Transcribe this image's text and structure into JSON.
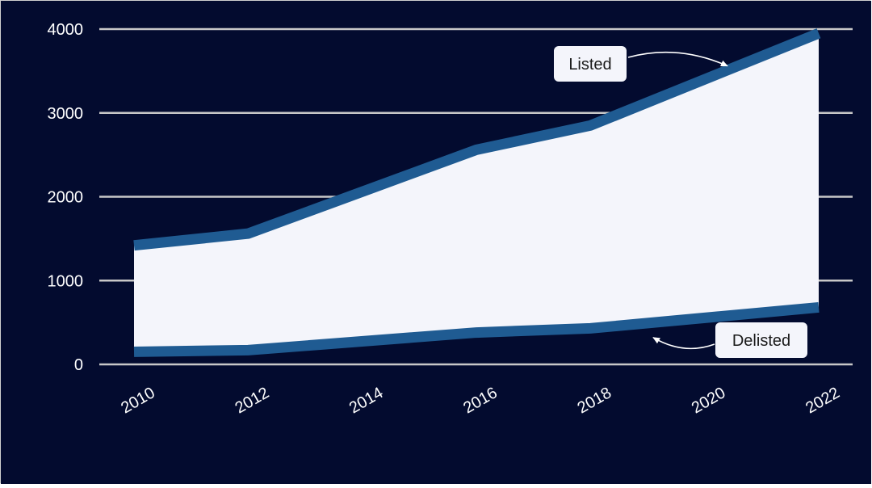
{
  "colors": {
    "background": "#030b2f",
    "grid": "#c8c8c8",
    "band_fill": "#f4f5fb",
    "series_line": "#1f5b92",
    "text": "#ffffff",
    "callout_bg": "#f4f5fb",
    "callout_text": "#1a1a1a"
  },
  "chart_data": {
    "type": "area",
    "title": "",
    "xlabel": "",
    "ylabel": "",
    "x": [
      2010,
      2012,
      2016,
      2018,
      2022
    ],
    "series": [
      {
        "name": "Listed",
        "values": [
          1420,
          1560,
          2560,
          2850,
          3950
        ]
      },
      {
        "name": "Delisted",
        "values": [
          150,
          170,
          380,
          430,
          680
        ]
      }
    ],
    "xlim": [
      2010,
      2022
    ],
    "ylim": [
      0,
      4000
    ],
    "x_ticks": [
      {
        "value": 2010,
        "label": "2010"
      },
      {
        "value": 2012,
        "label": "2012"
      },
      {
        "value": 2014,
        "label": "2014"
      },
      {
        "value": 2016,
        "label": "2016"
      },
      {
        "value": 2018,
        "label": "2018"
      },
      {
        "value": 2020,
        "label": "2020"
      },
      {
        "value": 2022,
        "label": "2022"
      }
    ],
    "y_ticks": [
      {
        "value": 0,
        "label": "0"
      },
      {
        "value": 1000,
        "label": "1000"
      },
      {
        "value": 2000,
        "label": "2000"
      },
      {
        "value": 3000,
        "label": "3000"
      },
      {
        "value": 4000,
        "label": "4000"
      }
    ],
    "grid": "horizontal",
    "annotations": [
      {
        "series": "Listed",
        "label": "Listed",
        "target": {
          "x": 2020.4,
          "y": 3560
        }
      },
      {
        "series": "Delisted",
        "label": "Delisted",
        "target": {
          "x": 2019.1,
          "y": 320
        }
      }
    ]
  }
}
